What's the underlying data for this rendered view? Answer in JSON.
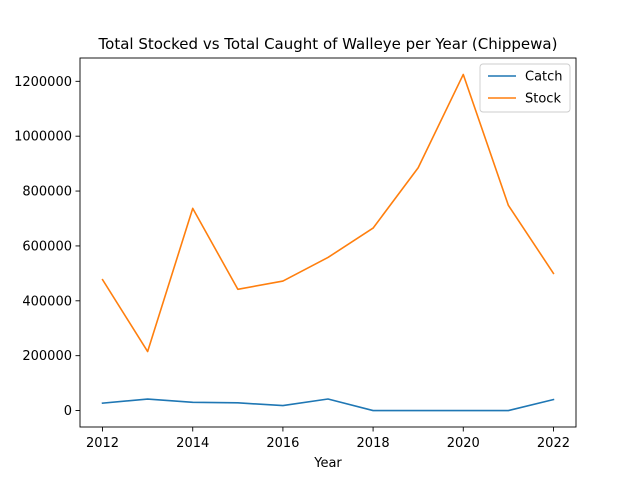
{
  "chart_data": {
    "type": "line",
    "title": "Total Stocked vs Total Caught of Walleye per Year (Chippewa)",
    "xlabel": "Year",
    "ylabel": "",
    "x": [
      2012,
      2013,
      2014,
      2015,
      2016,
      2017,
      2018,
      2019,
      2020,
      2021,
      2022
    ],
    "xlim": [
      2011.5,
      2022.5
    ],
    "ylim": [
      -60000,
      1285000
    ],
    "xticks": [
      2012,
      2014,
      2016,
      2018,
      2020,
      2022
    ],
    "yticks": [
      0,
      200000,
      400000,
      600000,
      800000,
      1000000,
      1200000
    ],
    "legend_position": "top-right",
    "grid": false,
    "series": [
      {
        "name": "Catch",
        "color": "#1f77b4",
        "values": [
          27000,
          42000,
          30000,
          28000,
          18000,
          42000,
          0,
          0,
          0,
          0,
          40000
        ]
      },
      {
        "name": "Stock",
        "color": "#ff7f0e",
        "values": [
          477000,
          215000,
          737000,
          442000,
          472000,
          558000,
          665000,
          885000,
          1225000,
          748000,
          500000
        ]
      }
    ]
  }
}
